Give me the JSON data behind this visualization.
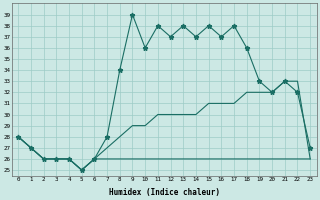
{
  "xlabel": "Humidex (Indice chaleur)",
  "bg_color": "#cce8e4",
  "line_color": "#1a6e64",
  "grid_color": "#9eccc6",
  "x_ticks": [
    0,
    1,
    2,
    3,
    4,
    5,
    6,
    7,
    8,
    9,
    10,
    11,
    12,
    13,
    14,
    15,
    16,
    17,
    18,
    19,
    20,
    21,
    22,
    23
  ],
  "y_ticks": [
    25,
    26,
    27,
    28,
    29,
    30,
    31,
    32,
    33,
    34,
    35,
    36,
    37,
    38,
    39
  ],
  "ylim": [
    24.5,
    40.0
  ],
  "xlim": [
    -0.5,
    23.5
  ],
  "main_series": [
    28,
    27,
    26,
    26,
    26,
    25,
    26,
    28,
    34,
    39,
    36,
    38,
    37,
    38,
    37,
    38,
    37,
    38,
    36,
    33,
    32,
    33,
    32,
    27
  ],
  "min_series": [
    28,
    27,
    26,
    26,
    26,
    25,
    26,
    26,
    26,
    26,
    26,
    26,
    26,
    26,
    26,
    26,
    26,
    26,
    26,
    26,
    26,
    26,
    26,
    26
  ],
  "max_series": [
    28,
    27,
    26,
    26,
    26,
    25,
    26,
    27,
    28,
    29,
    29,
    30,
    30,
    30,
    30,
    31,
    31,
    31,
    32,
    32,
    32,
    33,
    33,
    26
  ]
}
